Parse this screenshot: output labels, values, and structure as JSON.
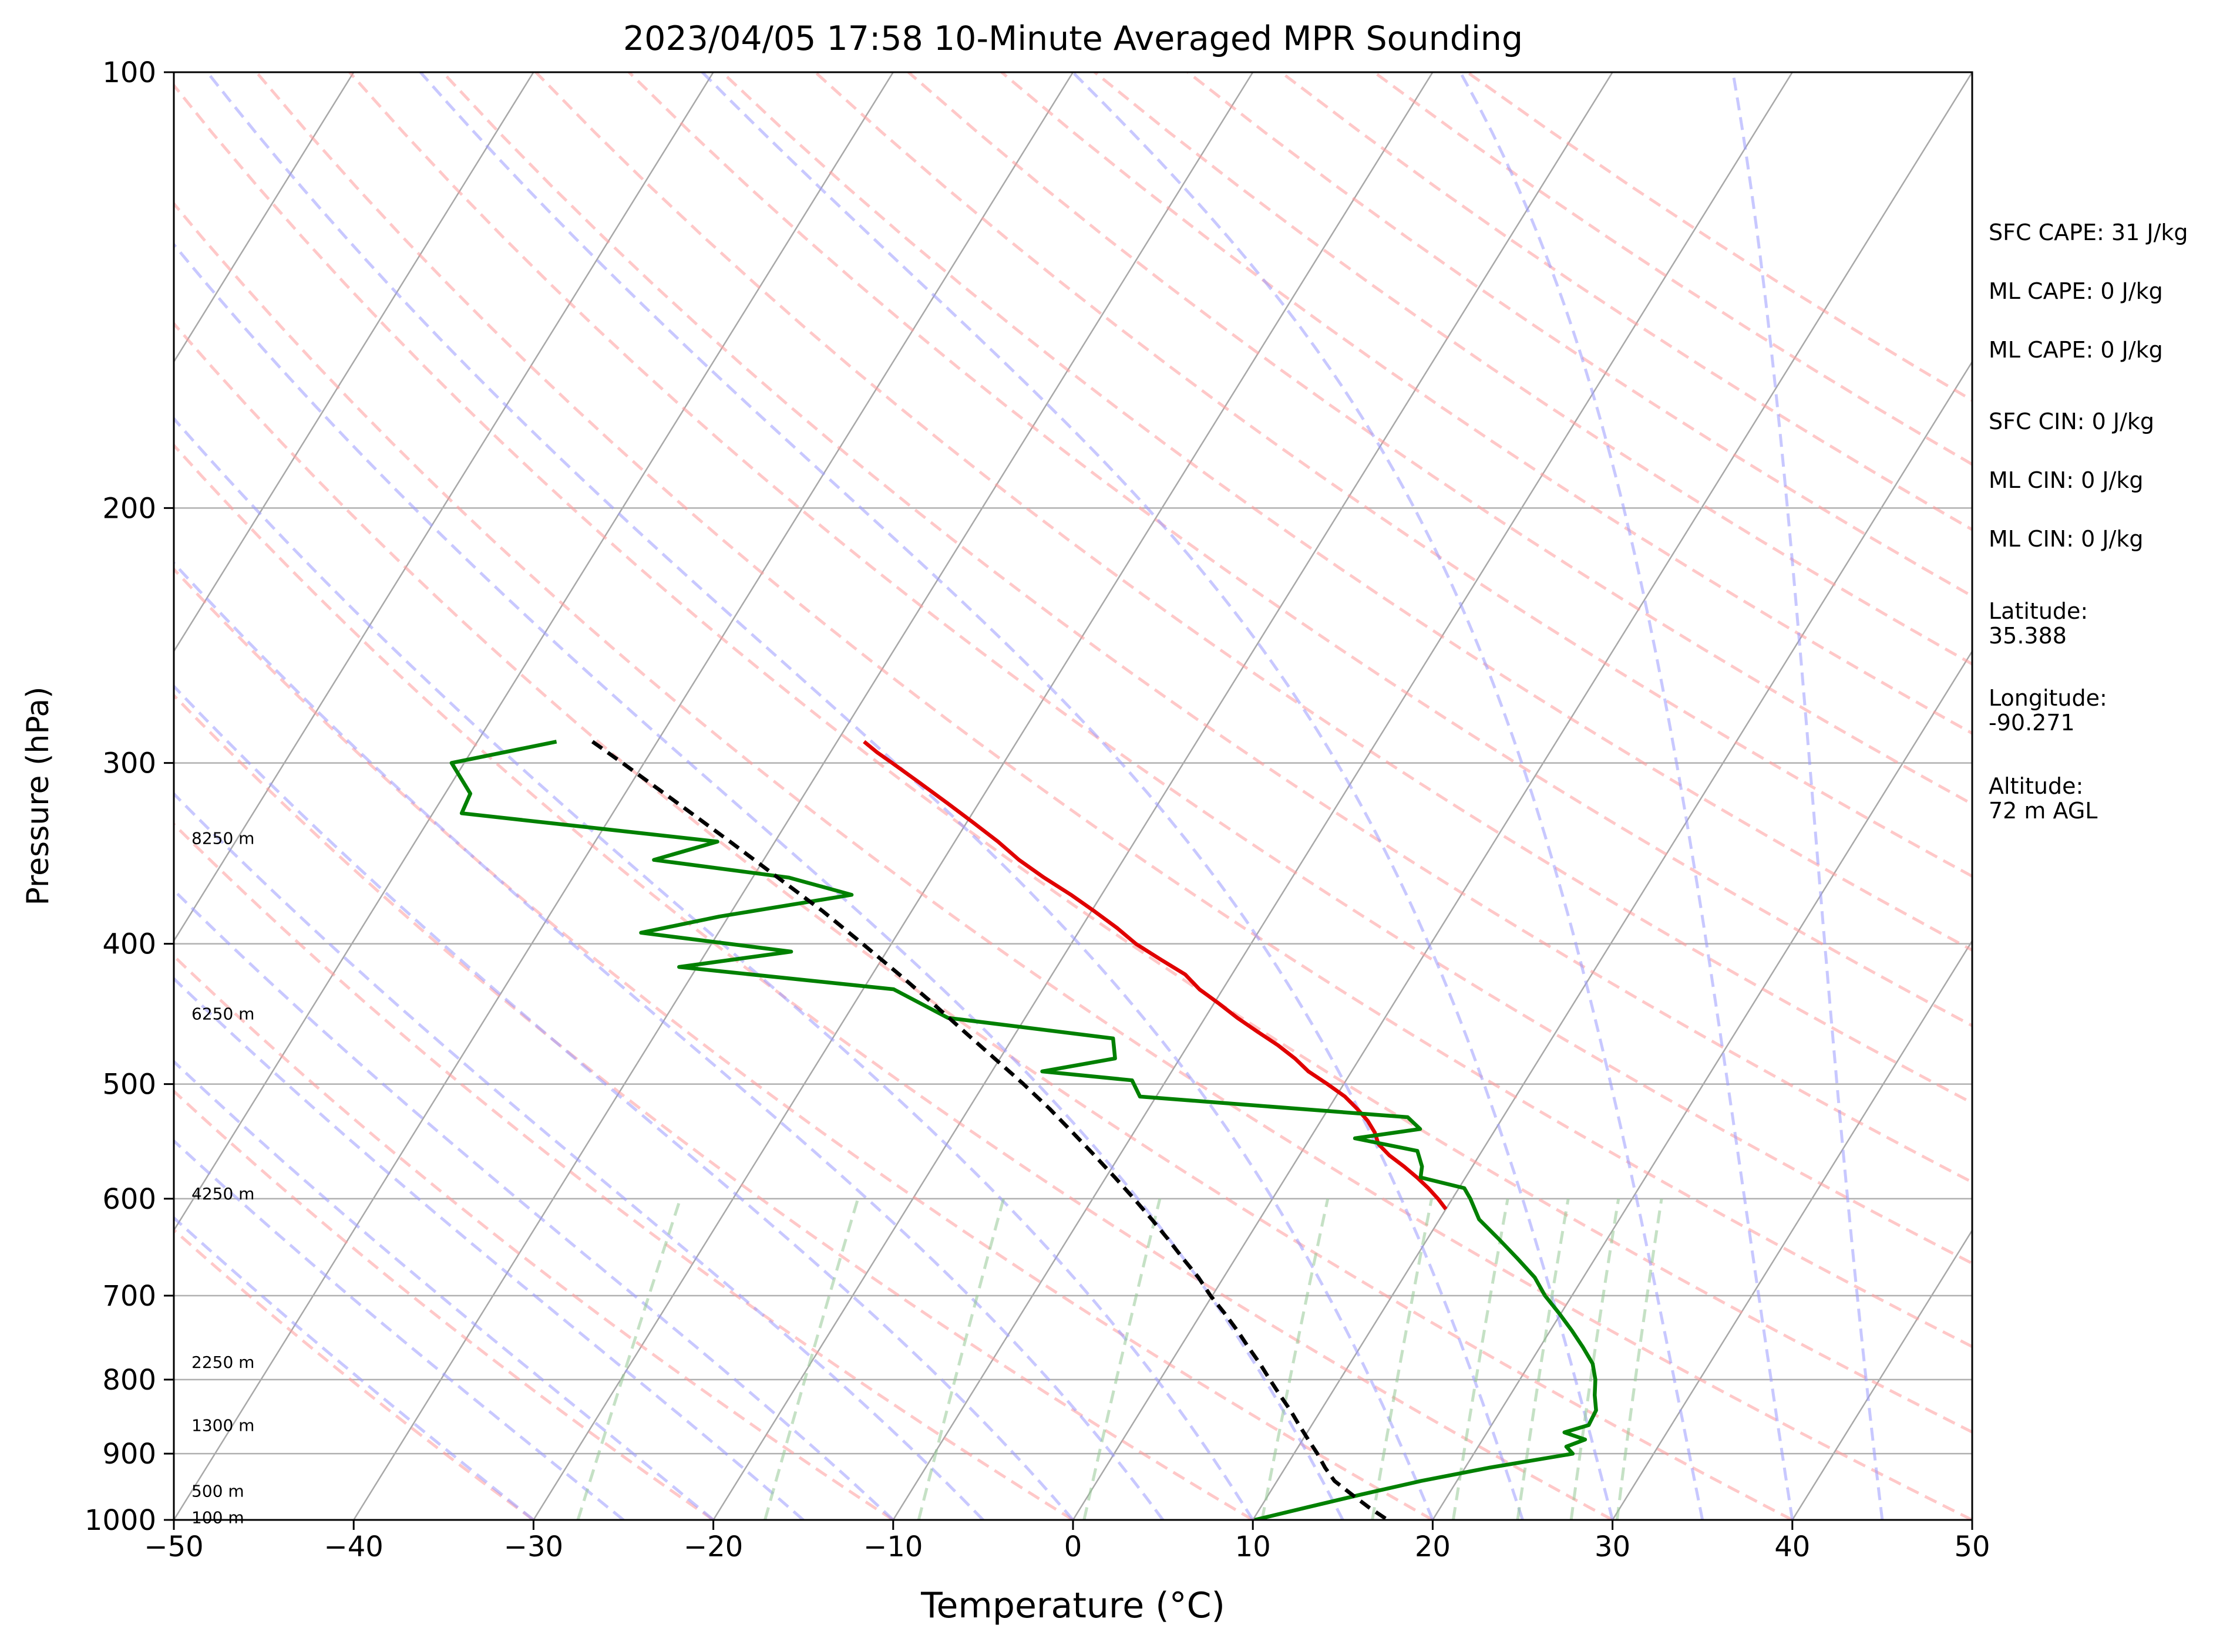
{
  "chart_data": {
    "type": "line",
    "title": "2023/04/05 17:58 10-Minute Averaged MPR Sounding",
    "xlabel": "Temperature (°C)",
    "ylabel": "Pressure (hPa)",
    "xlim": [
      -50,
      50
    ],
    "ylim": [
      1000,
      100
    ],
    "y_scale": "log",
    "x_ticks": [
      -50,
      -40,
      -30,
      -20,
      -10,
      0,
      10,
      20,
      30,
      40,
      50
    ],
    "x_tick_labels": [
      "−50",
      "−40",
      "−30",
      "−20",
      "−10",
      "0",
      "10",
      "20",
      "30",
      "40",
      "50"
    ],
    "y_ticks": [
      1000,
      900,
      800,
      700,
      600,
      500,
      400,
      300,
      200,
      100
    ],
    "y_tick_labels": [
      "1000",
      "900",
      "800",
      "700",
      "600",
      "500",
      "400",
      "300",
      "200",
      "100"
    ],
    "skew_deg_per_decade": 50,
    "grid": true,
    "series": [
      {
        "role": "temperature",
        "color": "#e00000",
        "p": [
          290,
          295,
          300,
          310,
          320,
          330,
          340,
          350,
          360,
          370,
          380,
          390,
          400,
          410,
          420,
          430,
          440,
          450,
          460,
          470,
          480,
          490,
          500,
          510,
          520,
          530,
          540,
          550,
          560,
          570,
          580,
          590,
          600,
          610
        ],
        "t": [
          -38.5,
          -37.4,
          -36.2,
          -33.9,
          -31.7,
          -29.6,
          -27.6,
          -25.8,
          -23.8,
          -21.7,
          -19.8,
          -18.0,
          -16.4,
          -14.5,
          -12.6,
          -11.3,
          -9.7,
          -8.2,
          -6.6,
          -5.0,
          -3.6,
          -2.4,
          -0.9,
          0.5,
          1.6,
          2.6,
          3.4,
          4.0,
          5.0,
          6.2,
          7.3,
          8.3,
          9.2,
          10.0
        ]
      },
      {
        "role": "dewpoint",
        "color": "#008000",
        "p": [
          290,
          300,
          315,
          325,
          340,
          350,
          360,
          370,
          383,
          393,
          405,
          415,
          430,
          450,
          465,
          480,
          490,
          497,
          510,
          527,
          537,
          545,
          556,
          570,
          580,
          590,
          600,
          620,
          640,
          660,
          680,
          700,
          720,
          740,
          760,
          780,
          800,
          820,
          840,
          860,
          870,
          880,
          890,
          900,
          920,
          940,
          960,
          980,
          1000
        ],
        "t": [
          -55.6,
          -60.7,
          -58.6,
          -58.4,
          -43.2,
          -46.1,
          -38.0,
          -33.9,
          -40.5,
          -44.3,
          -35.3,
          -41.0,
          -28.3,
          -24.3,
          -14.4,
          -13.6,
          -17.2,
          -11.9,
          -10.9,
          4.7,
          5.8,
          2.5,
          6.4,
          7.2,
          7.5,
          10.3,
          11.0,
          12.2,
          14.0,
          15.7,
          17.3,
          18.5,
          19.9,
          21.2,
          22.4,
          23.5,
          24.2,
          24.7,
          25.3,
          25.4,
          24.3,
          25.7,
          24.9,
          25.5,
          21.4,
          18.0,
          15.2,
          12.6,
          10.1
        ]
      },
      {
        "role": "parcel",
        "color": "#000000",
        "dashed": true,
        "p": [
          290,
          300,
          320,
          340,
          360,
          380,
          400,
          420,
          440,
          460,
          480,
          500,
          520,
          540,
          560,
          580,
          600,
          620,
          640,
          660,
          680,
          700,
          720,
          740,
          760,
          780,
          800,
          820,
          840,
          860,
          880,
          900,
          920,
          940,
          960,
          980,
          1000
        ],
        "t": [
          -53.6,
          -51.2,
          -46.7,
          -42.5,
          -38.6,
          -34.9,
          -31.6,
          -28.5,
          -25.6,
          -22.9,
          -20.3,
          -17.8,
          -15.5,
          -13.4,
          -11.4,
          -9.5,
          -7.7,
          -6.0,
          -4.4,
          -2.9,
          -1.4,
          -0.1,
          1.3,
          2.6,
          3.8,
          5.0,
          6.1,
          7.2,
          8.3,
          9.3,
          10.3,
          11.3,
          12.2,
          13.2,
          14.6,
          16.0,
          17.5
        ]
      }
    ],
    "height_labels": [
      {
        "p": 996,
        "text": "100 m"
      },
      {
        "p": 955,
        "text": "500 m"
      },
      {
        "p": 860,
        "text": "1300 m"
      },
      {
        "p": 778,
        "text": "2250 m"
      },
      {
        "p": 595,
        "text": "4250 m"
      },
      {
        "p": 447,
        "text": "6250 m"
      },
      {
        "p": 338,
        "text": "8250 m"
      }
    ],
    "background_lines": {
      "dry_adiabats": {
        "color": "#ff9a9a",
        "dashed": true
      },
      "moist_adiabats": {
        "color": "#9a9aff",
        "dashed": true
      },
      "mixing_ratio": {
        "color": "#96c896",
        "dashed": true
      },
      "isotherms": {
        "color": "#a8a8a8",
        "dashed": false
      }
    }
  },
  "side_info": [
    "SFC CAPE: 31 J/kg",
    "ML CAPE: 0 J/kg",
    "ML CAPE: 0 J/kg",
    "SFC CIN: 0 J/kg",
    "ML CIN: 0 J/kg",
    "ML CIN: 0 J/kg",
    "Latitude:\n35.388",
    "Longitude:\n-90.271",
    "Altitude:\n72 m AGL"
  ]
}
